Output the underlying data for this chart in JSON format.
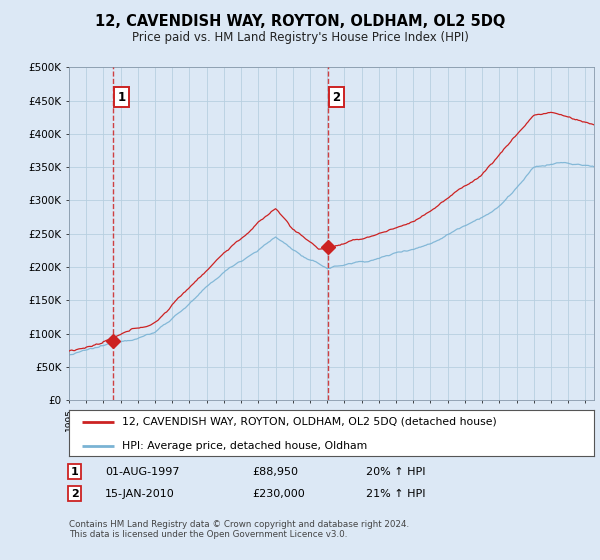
{
  "title": "12, CAVENDISH WAY, ROYTON, OLDHAM, OL2 5DQ",
  "subtitle": "Price paid vs. HM Land Registry's House Price Index (HPI)",
  "ylabel_ticks": [
    "£0",
    "£50K",
    "£100K",
    "£150K",
    "£200K",
    "£250K",
    "£300K",
    "£350K",
    "£400K",
    "£450K",
    "£500K"
  ],
  "ylim": [
    0,
    500000
  ],
  "xlim_start": 1995.0,
  "xlim_end": 2025.5,
  "sale1_date": 1997.583,
  "sale1_price": 88950,
  "sale1_label": "1",
  "sale2_date": 2010.04,
  "sale2_price": 230000,
  "sale2_label": "2",
  "legend_line1": "12, CAVENDISH WAY, ROYTON, OLDHAM, OL2 5DQ (detached house)",
  "legend_line2": "HPI: Average price, detached house, Oldham",
  "footnote": "Contains HM Land Registry data © Crown copyright and database right 2024.\nThis data is licensed under the Open Government Licence v3.0.",
  "hpi_color": "#7ab3d4",
  "price_color": "#cc2222",
  "dashed_line_color": "#cc2222",
  "background_color": "#dce8f5",
  "plot_bg_color": "#dce8f5",
  "grid_color": "#b8cfe0",
  "legend_bg": "#ffffff"
}
